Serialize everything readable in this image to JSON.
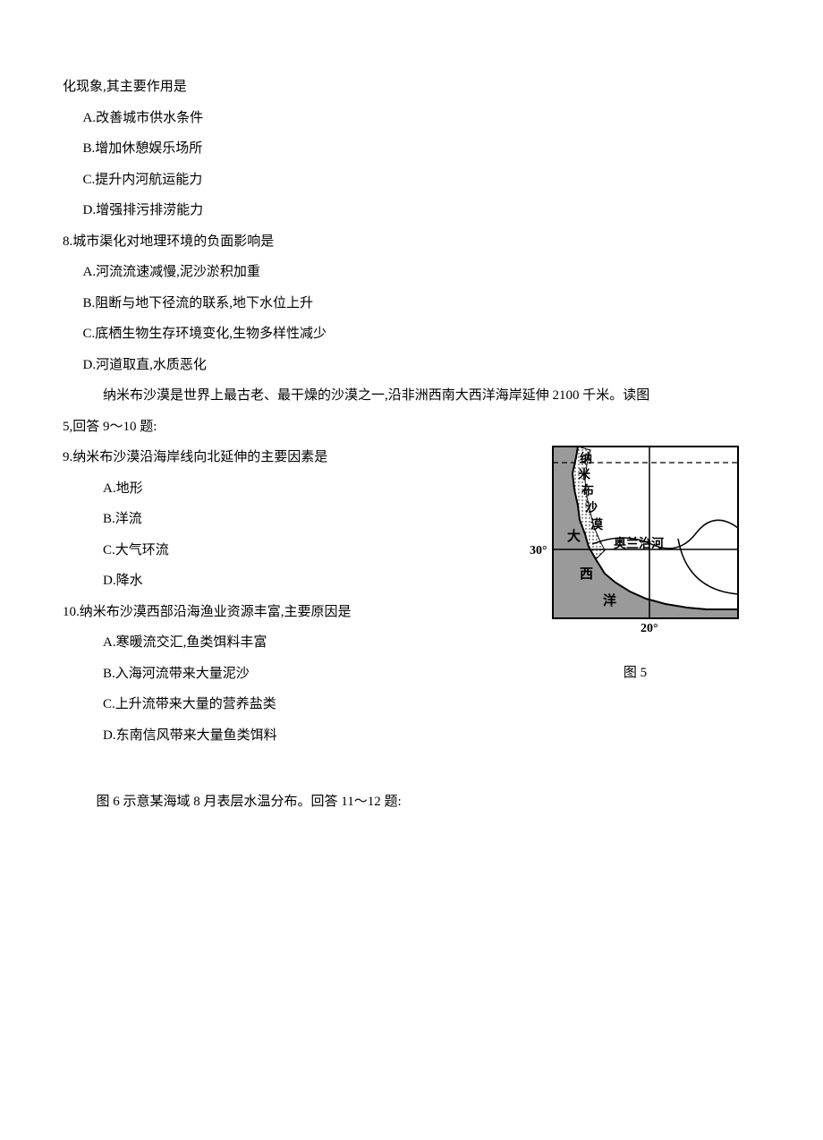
{
  "intro_q7_tail": "化现象,其主要作用是",
  "q7": {
    "A": "A.改善城市供水条件",
    "B": "B.增加休憩娱乐场所",
    "C": "C.提升内河航运能力",
    "D": "D.增强排污排涝能力"
  },
  "q8": {
    "stem": "8.城市渠化对地理环境的负面影响是",
    "A": "A.河流流速减慢,泥沙淤积加重",
    "B": "B.阻断与地下径流的联系,地下水位上升",
    "C": "C.底栖生物生存环境变化,生物多样性减少",
    "D": "D.河道取直,水质恶化"
  },
  "passage9_10": {
    "line1": "纳米布沙漠是世界上最古老、最干燥的沙漠之一,沿非洲西南大西洋海岸延伸 2100 千米。读图",
    "line2": "5,回答 9～10 题:"
  },
  "q9": {
    "stem": "9.纳米布沙漠沿海岸线向北延伸的主要因素是",
    "A": "A.地形",
    "B": "B.洋流",
    "C": "C.大气环流",
    "D": "D.降水"
  },
  "q10": {
    "stem": "10.纳米布沙漠西部沿海渔业资源丰富,主要原因是",
    "A": "A.寒暖流交汇,鱼类饵料丰富",
    "B": "B.入海河流带来大量泥沙",
    "C": "C.上升流带来大量的营养盐类",
    "D": "D.东南信风带来大量鱼类饵料"
  },
  "figure5": {
    "caption": "图 5",
    "labels": {
      "desert1": "纳",
      "desert2": "米",
      "desert3": "布",
      "desert4": "沙",
      "desert5": "漠",
      "ocean1": "大",
      "ocean2": "西",
      "ocean3": "洋",
      "river": "奥兰治河",
      "lat": "30°",
      "lon": "20°"
    },
    "colors": {
      "land": "#ffffff",
      "ocean": "#9a9a9a",
      "border": "#000000",
      "desert_fill": "#e6e6e6"
    }
  },
  "passage11_12": "图 6 示意某海域 8 月表层水温分布。回答 11～12 题:"
}
